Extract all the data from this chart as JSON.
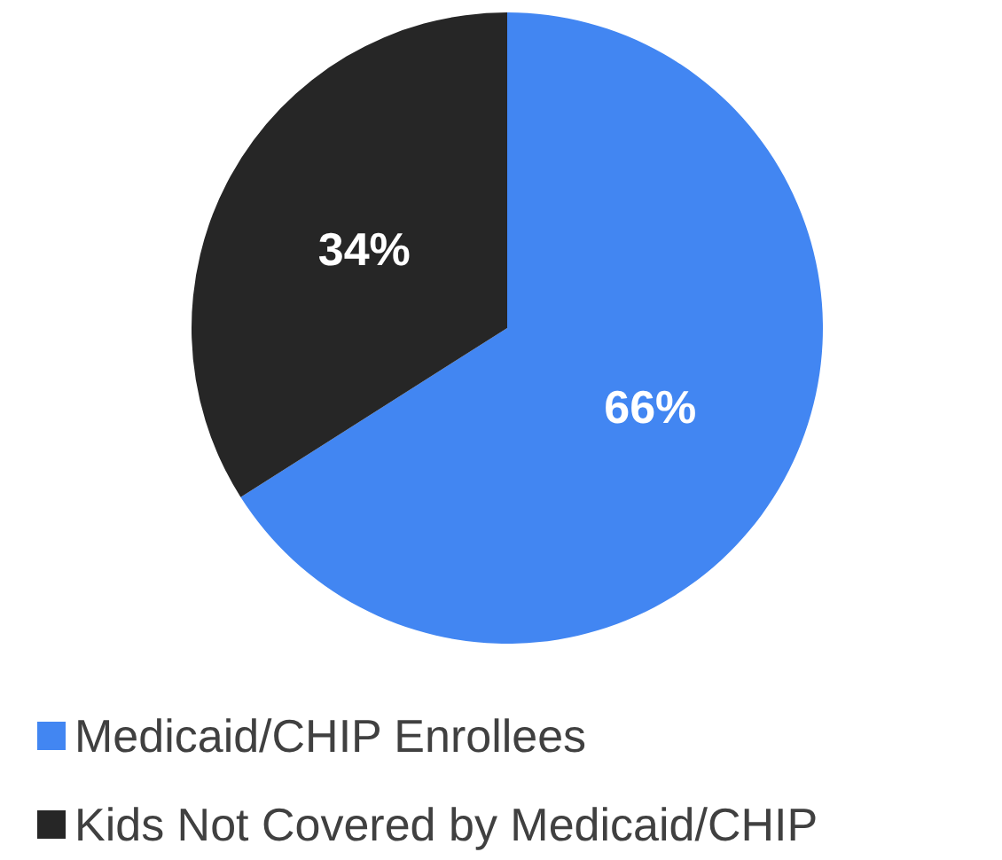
{
  "chart_data": {
    "type": "pie",
    "categories": [
      "Medicaid/CHIP Enrollees",
      "Kids Not Covered by Medicaid/CHIP"
    ],
    "values": [
      66,
      34
    ],
    "value_labels": [
      "66%",
      "34%"
    ],
    "colors": [
      "#4286f2",
      "#262626"
    ],
    "legend": "bottom left"
  }
}
